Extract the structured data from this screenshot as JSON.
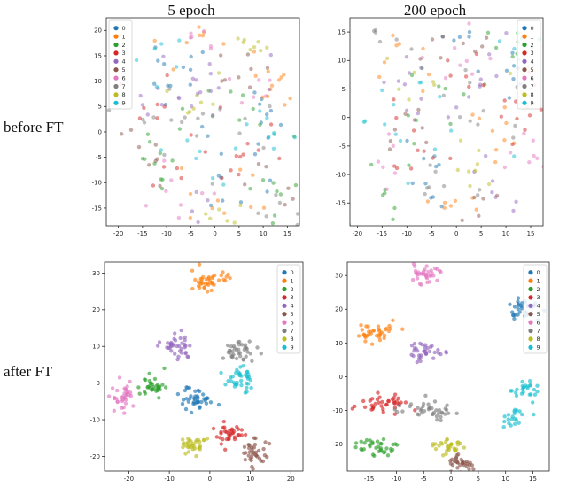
{
  "figure": {
    "col_titles": [
      "5 epoch",
      "200 epoch"
    ],
    "row_labels": [
      "before FT",
      "after FT"
    ]
  },
  "palette": [
    "#1f77b4",
    "#ff7f0e",
    "#2ca02c",
    "#d62728",
    "#9467bd",
    "#8c564b",
    "#e377c2",
    "#7f7f7f",
    "#bcbd22",
    "#17becf"
  ],
  "chart_data": [
    {
      "type": "scatter",
      "col": "5 epoch",
      "row": "before FT",
      "seed": 11,
      "alpha": 0.5,
      "xlim": [
        -22.5,
        17.5
      ],
      "ylim": [
        -18.5,
        22.5
      ],
      "xticks": [
        -20,
        -15,
        -10,
        -5,
        0,
        5,
        10,
        15
      ],
      "yticks": [
        -15,
        -10,
        -5,
        0,
        5,
        10,
        15,
        20
      ],
      "legend": "upper-left",
      "classes": [
        {
          "label": "0",
          "color": "#1f77b4",
          "blobs": [
            [
              -8,
              12,
              4,
              3,
              12
            ],
            [
              5,
              -8,
              5,
              4,
              12
            ],
            [
              12,
              5,
              3,
              3,
              8
            ]
          ]
        },
        {
          "label": "1",
          "color": "#ff7f0e",
          "blobs": [
            [
              12,
              9,
              3,
              3,
              14
            ],
            [
              -3,
              18,
              4,
              2,
              8
            ],
            [
              0,
              -12,
              5,
              3,
              10
            ]
          ]
        },
        {
          "label": "2",
          "color": "#2ca02c",
          "blobs": [
            [
              -12,
              -8,
              4,
              4,
              10
            ],
            [
              3,
              3,
              5,
              4,
              10
            ],
            [
              8,
              -14,
              4,
              3,
              8
            ]
          ]
        },
        {
          "label": "3",
          "color": "#d62728",
          "blobs": [
            [
              -5,
              -5,
              5,
              4,
              10
            ],
            [
              10,
              -5,
              4,
              4,
              10
            ],
            [
              -15,
              5,
              3,
              3,
              6
            ]
          ]
        },
        {
          "label": "4",
          "color": "#9467bd",
          "blobs": [
            [
              -10,
              8,
              4,
              3,
              10
            ],
            [
              0,
              8,
              4,
              4,
              10
            ],
            [
              -5,
              -15,
              4,
              3,
              6
            ]
          ]
        },
        {
          "label": "5",
          "color": "#8c564b",
          "blobs": [
            [
              -15,
              -3,
              3,
              3,
              8
            ],
            [
              5,
              12,
              4,
              3,
              8
            ],
            [
              13,
              -10,
              3,
              3,
              6
            ]
          ]
        },
        {
          "label": "6",
          "color": "#e377c2",
          "blobs": [
            [
              -3,
              20,
              3,
              2,
              8
            ],
            [
              -8,
              -12,
              4,
              3,
              8
            ],
            [
              8,
              8,
              4,
              3,
              6
            ]
          ]
        },
        {
          "label": "7",
          "color": "#7f7f7f",
          "blobs": [
            [
              0,
              0,
              6,
              5,
              10
            ],
            [
              -12,
              2,
              4,
              3,
              8
            ],
            [
              12,
              -15,
              3,
              2,
              6
            ]
          ]
        },
        {
          "label": "8",
          "color": "#bcbd22",
          "blobs": [
            [
              7,
              17,
              3,
              2,
              8
            ],
            [
              -6,
              5,
              4,
              4,
              8
            ],
            [
              3,
              -16,
              4,
              2,
              6
            ]
          ]
        },
        {
          "label": "9",
          "color": "#17becf",
          "blobs": [
            [
              14,
              0,
              3,
              4,
              8
            ],
            [
              -10,
              15,
              3,
              3,
              6
            ],
            [
              0,
              -5,
              5,
              4,
              8
            ]
          ]
        }
      ]
    },
    {
      "type": "scatter",
      "col": "200 epoch",
      "row": "before FT",
      "seed": 23,
      "alpha": 0.5,
      "xlim": [
        -21.5,
        17.5
      ],
      "ylim": [
        -19,
        17.5
      ],
      "xticks": [
        -20,
        -15,
        -10,
        -5,
        0,
        5,
        10,
        15
      ],
      "yticks": [
        -15,
        -10,
        -5,
        0,
        5,
        10,
        15
      ],
      "legend": "upper-right",
      "classes": [
        {
          "label": "0",
          "color": "#1f77b4",
          "blobs": [
            [
              10,
              8,
              4,
              3,
              10
            ],
            [
              -8,
              -10,
              4,
              4,
              10
            ],
            [
              2,
              14,
              3,
              2,
              6
            ]
          ]
        },
        {
          "label": "1",
          "color": "#ff7f0e",
          "blobs": [
            [
              -12,
              10,
              3,
              3,
              8
            ],
            [
              8,
              -3,
              4,
              4,
              10
            ],
            [
              0,
              -16,
              4,
              2,
              8
            ]
          ]
        },
        {
          "label": "2",
          "color": "#2ca02c",
          "blobs": [
            [
              12,
              12,
              3,
              2,
              8
            ],
            [
              -4,
              4,
              5,
              4,
              10
            ],
            [
              -14,
              -12,
              3,
              3,
              8
            ]
          ]
        },
        {
          "label": "3",
          "color": "#d62728",
          "blobs": [
            [
              13,
              2,
              3,
              4,
              10
            ],
            [
              -6,
              -4,
              5,
              4,
              10
            ],
            [
              3,
              8,
              3,
              3,
              6
            ]
          ]
        },
        {
          "label": "4",
          "color": "#9467bd",
          "blobs": [
            [
              -10,
              3,
              4,
              3,
              10
            ],
            [
              5,
              5,
              4,
              3,
              8
            ],
            [
              10,
              -12,
              3,
              3,
              8
            ]
          ]
        },
        {
          "label": "5",
          "color": "#8c564b",
          "blobs": [
            [
              -3,
              12,
              4,
              2,
              8
            ],
            [
              -12,
              -4,
              3,
              4,
              8
            ],
            [
              8,
              -16,
              3,
              2,
              6
            ]
          ]
        },
        {
          "label": "6",
          "color": "#e377c2",
          "blobs": [
            [
              0,
              10,
              4,
              3,
              8
            ],
            [
              -15,
              -8,
              3,
              3,
              6
            ],
            [
              12,
              -7,
              3,
              3,
              8
            ]
          ]
        },
        {
          "label": "7",
          "color": "#7f7f7f",
          "blobs": [
            [
              -5,
              -13,
              4,
              3,
              8
            ],
            [
              6,
              0,
              5,
              4,
              10
            ],
            [
              -13,
              13,
              3,
              2,
              6
            ]
          ]
        },
        {
          "label": "8",
          "color": "#bcbd22",
          "blobs": [
            [
              2,
              -8,
              4,
              3,
              8
            ],
            [
              13,
              7,
              3,
              3,
              6
            ],
            [
              -8,
              8,
              3,
              3,
              6
            ]
          ]
        },
        {
          "label": "9",
          "color": "#17becf",
          "blobs": [
            [
              -2,
              -2,
              5,
              4,
              8
            ],
            [
              10,
              13,
              3,
              2,
              6
            ],
            [
              -16,
              2,
              3,
              3,
              6
            ]
          ]
        }
      ]
    },
    {
      "type": "scatter",
      "col": "5 epoch",
      "row": "after FT",
      "seed": 37,
      "alpha": 0.65,
      "xlim": [
        -26,
        23
      ],
      "ylim": [
        -24,
        33
      ],
      "xticks": [
        -20,
        -10,
        0,
        10,
        20
      ],
      "yticks": [
        -20,
        -10,
        0,
        10,
        20,
        30
      ],
      "legend": "upper-right",
      "classes": [
        {
          "label": "0",
          "color": "#1f77b4",
          "blobs": [
            [
              -3,
              -4,
              1.8,
              1.6,
              40
            ]
          ]
        },
        {
          "label": "1",
          "color": "#ff7f0e",
          "blobs": [
            [
              0,
              28,
              2.2,
              1.4,
              40
            ]
          ]
        },
        {
          "label": "2",
          "color": "#2ca02c",
          "blobs": [
            [
              -14,
              -1,
              1.8,
              1.8,
              35
            ]
          ]
        },
        {
          "label": "3",
          "color": "#d62728",
          "blobs": [
            [
              5,
              -14,
              1.8,
              1.5,
              35
            ]
          ]
        },
        {
          "label": "4",
          "color": "#9467bd",
          "blobs": [
            [
              -8,
              10,
              1.8,
              1.5,
              38
            ]
          ]
        },
        {
          "label": "5",
          "color": "#8c564b",
          "blobs": [
            [
              11,
              -19,
              1.8,
              1.8,
              35
            ]
          ]
        },
        {
          "label": "6",
          "color": "#e377c2",
          "blobs": [
            [
              -21,
              -4,
              1.6,
              1.8,
              35
            ]
          ]
        },
        {
          "label": "7",
          "color": "#7f7f7f",
          "blobs": [
            [
              7,
              9,
              2.0,
              1.6,
              38
            ]
          ]
        },
        {
          "label": "8",
          "color": "#bcbd22",
          "blobs": [
            [
              -4,
              -17,
              1.8,
              1.4,
              33
            ]
          ]
        },
        {
          "label": "9",
          "color": "#17becf",
          "blobs": [
            [
              8,
              1,
              1.8,
              1.8,
              38
            ]
          ]
        }
      ]
    },
    {
      "type": "scatter",
      "col": "200 epoch",
      "row": "after FT",
      "seed": 51,
      "alpha": 0.65,
      "xlim": [
        -19,
        18
      ],
      "ylim": [
        -28,
        34
      ],
      "xticks": [
        -15,
        -10,
        -5,
        0,
        5,
        10,
        15
      ],
      "yticks": [
        -20,
        -10,
        0,
        10,
        20,
        30
      ],
      "legend": "upper-right",
      "classes": [
        {
          "label": "0",
          "color": "#1f77b4",
          "blobs": [
            [
              13,
              20,
              1.4,
              1.6,
              35
            ]
          ]
        },
        {
          "label": "1",
          "color": "#ff7f0e",
          "blobs": [
            [
              -14,
              13,
              1.8,
              1.4,
              38
            ]
          ]
        },
        {
          "label": "2",
          "color": "#2ca02c",
          "blobs": [
            [
              -14,
              -21,
              1.8,
              1.5,
              35
            ]
          ]
        },
        {
          "label": "3",
          "color": "#d62728",
          "blobs": [
            [
              -13,
              -8,
              2.6,
              1.3,
              40
            ]
          ]
        },
        {
          "label": "4",
          "color": "#9467bd",
          "blobs": [
            [
              -5,
              7,
              1.6,
              1.4,
              35
            ]
          ]
        },
        {
          "label": "5",
          "color": "#8c564b",
          "blobs": [
            [
              2,
              -26,
              1.4,
              1.2,
              30
            ]
          ]
        },
        {
          "label": "6",
          "color": "#e377c2",
          "blobs": [
            [
              -5,
              30,
              1.8,
              1.3,
              35
            ]
          ]
        },
        {
          "label": "7",
          "color": "#7f7f7f",
          "blobs": [
            [
              -4,
              -10,
              2.4,
              1.5,
              40
            ]
          ]
        },
        {
          "label": "8",
          "color": "#bcbd22",
          "blobs": [
            [
              -1,
              -21,
              1.6,
              1.3,
              32
            ]
          ]
        },
        {
          "label": "9",
          "color": "#17becf",
          "blobs": [
            [
              14,
              -4,
              1.4,
              1.8,
              25
            ],
            [
              12,
              -12,
              1.4,
              1.4,
              20
            ]
          ]
        }
      ]
    }
  ]
}
